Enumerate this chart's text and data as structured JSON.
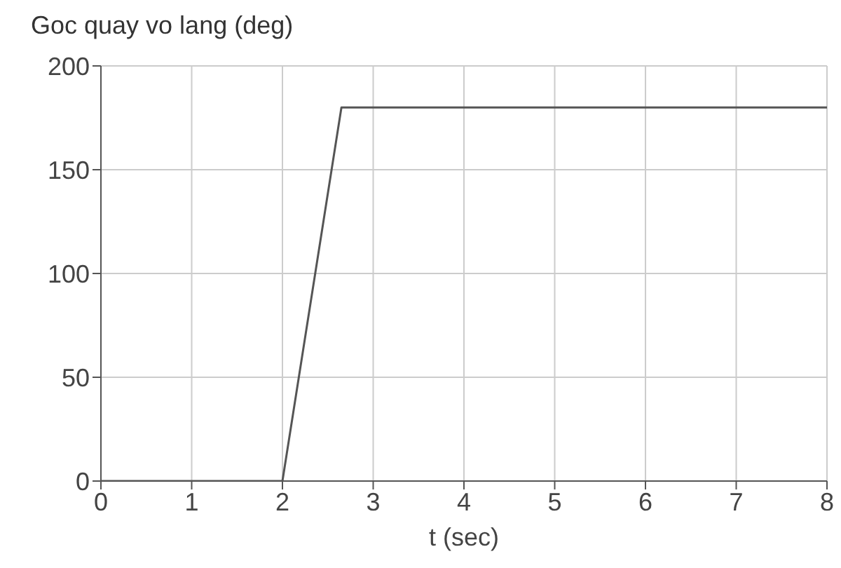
{
  "chart_data": {
    "type": "line",
    "ylabel": "Goc quay vo lang (deg)",
    "xlabel": "t (sec)",
    "x": [
      0,
      2,
      2.65,
      8
    ],
    "values": [
      0,
      0,
      180,
      180
    ],
    "color": "#555555",
    "xlim": [
      0,
      8
    ],
    "xticks": [
      0,
      1,
      2,
      3,
      4,
      5,
      6,
      7,
      8
    ],
    "ylim": [
      0,
      200
    ],
    "yticks": [
      0,
      50,
      100,
      150,
      200
    ],
    "grid": true
  }
}
